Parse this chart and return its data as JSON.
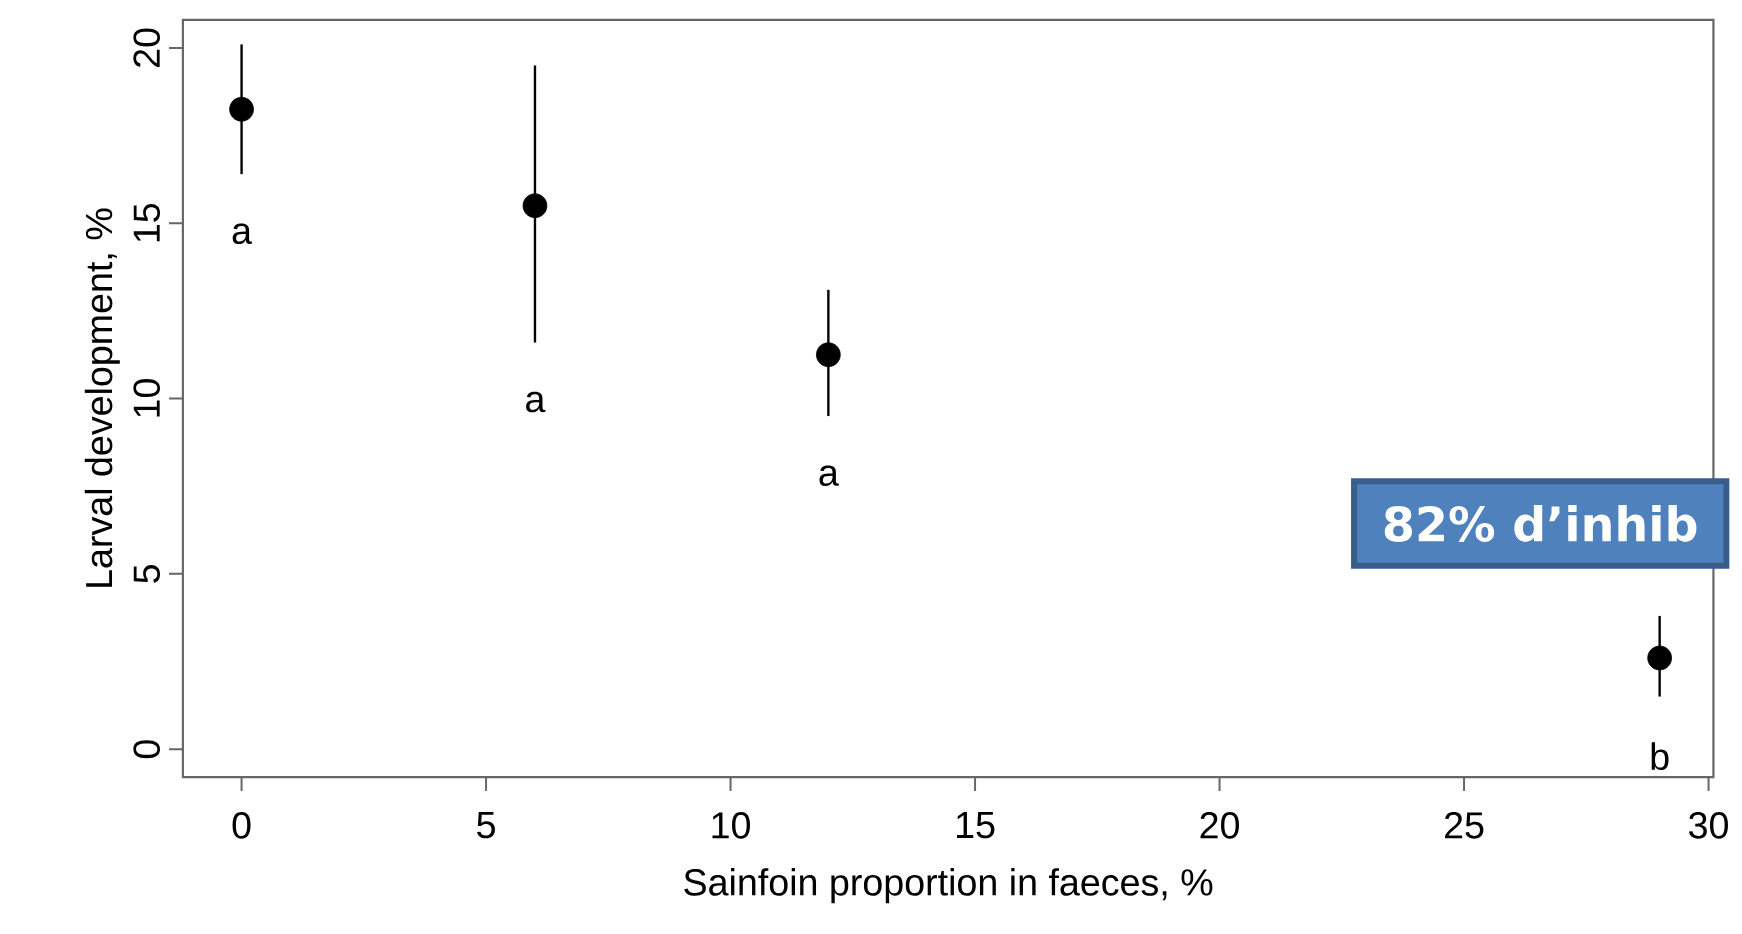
{
  "chart_data": {
    "type": "scatter",
    "xlabel": "Sainfoin proportion in faeces, %",
    "ylabel": "Larval development, %",
    "x": [
      0,
      6,
      12,
      29
    ],
    "series": [
      {
        "color": "#000000",
        "values": [
          18.25,
          15.5,
          11.25,
          2.6
        ],
        "errors": [
          [
            16.4,
            20.1
          ],
          [
            11.6,
            19.5
          ],
          [
            9.5,
            13.1
          ],
          [
            1.5,
            3.8
          ]
        ]
      }
    ],
    "xlim": [
      -1.2,
      30.1
    ],
    "ylim": [
      -0.8,
      20.8
    ],
    "xticks": [
      0,
      5,
      10,
      15,
      20,
      25,
      30
    ],
    "yticks": [
      0,
      5,
      10,
      15,
      20
    ],
    "grid": false,
    "annotations": [
      "a",
      "a",
      "a",
      "b",
      "82% d’inhib"
    ]
  }
}
